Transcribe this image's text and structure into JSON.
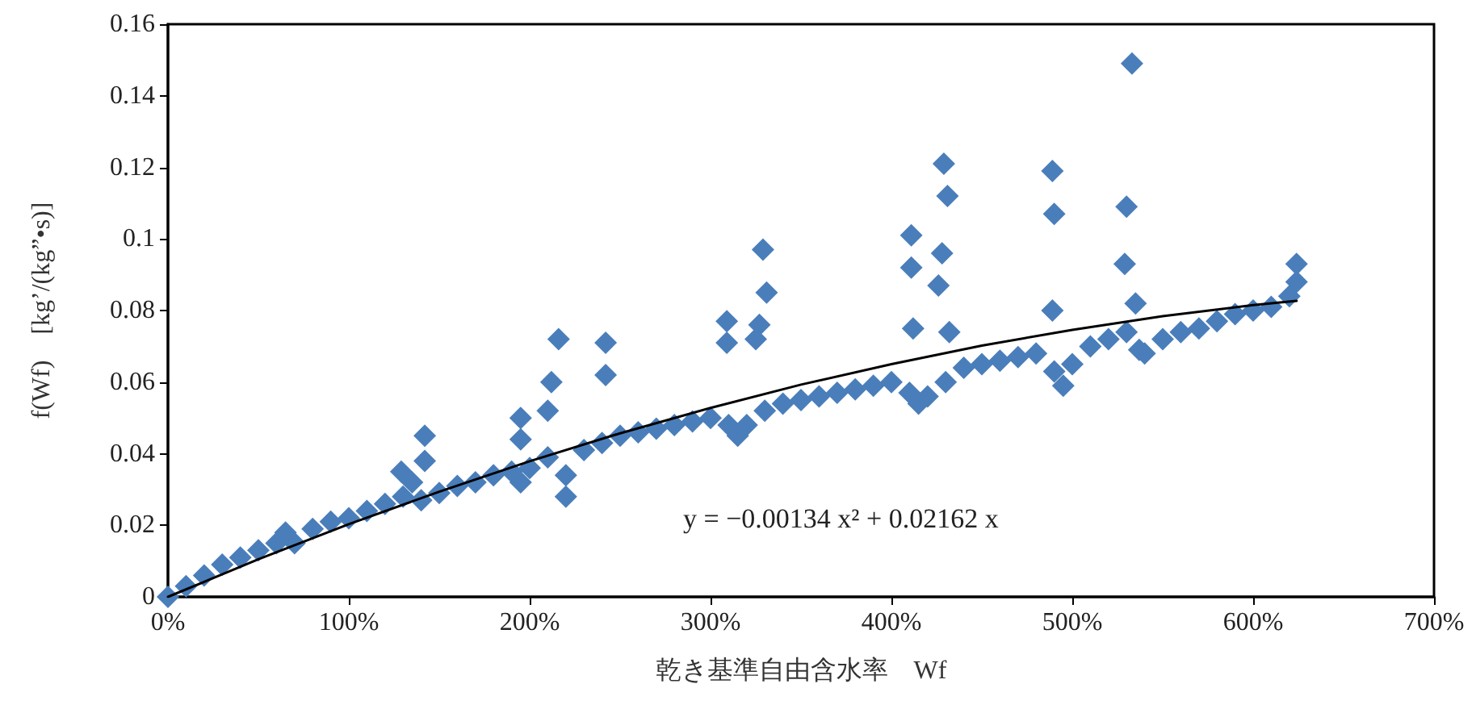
{
  "chart_data": {
    "type": "scatter",
    "xlabel": "乾き基準自由含水率　Wf",
    "ylabel": "f(Wf)　[kg’/(kg”•s)]",
    "xlim": [
      0,
      7
    ],
    "xticks": [
      {
        "value": 0,
        "label": "0%"
      },
      {
        "value": 1,
        "label": "100%"
      },
      {
        "value": 2,
        "label": "200%"
      },
      {
        "value": 3,
        "label": "300%"
      },
      {
        "value": 4,
        "label": "400%"
      },
      {
        "value": 5,
        "label": "500%"
      },
      {
        "value": 6,
        "label": "600%"
      },
      {
        "value": 7,
        "label": "700%"
      }
    ],
    "ylim": [
      0,
      0.16
    ],
    "yticks": [
      0,
      0.02,
      0.04,
      0.06,
      0.08,
      0.1,
      0.12,
      0.14,
      0.16
    ],
    "grid": false,
    "marker": "diamond",
    "annotations": [
      "y = −0.00134 x² + 0.02162 x"
    ],
    "series": [
      {
        "color": "#4a7ebb",
        "x": [
          0,
          0.1,
          0.2,
          0.3,
          0.4,
          0.5,
          0.6,
          0.65,
          0.7,
          0.8,
          0.9,
          1.0,
          1.1,
          1.2,
          1.3,
          1.35,
          1.4,
          1.5,
          1.6,
          1.7,
          1.8,
          1.9,
          1.95,
          2.0,
          2.1,
          2.2,
          2.3,
          2.4,
          2.5,
          2.6,
          2.7,
          2.8,
          2.9,
          3.0,
          3.1,
          3.15,
          3.2,
          3.3,
          3.4,
          3.5,
          3.6,
          3.7,
          3.8,
          3.9,
          4.0,
          4.1,
          4.15,
          4.2,
          4.3,
          4.4,
          4.5,
          4.6,
          4.7,
          4.8,
          4.9,
          4.95,
          5.0,
          5.1,
          5.2,
          5.3,
          5.4,
          5.5,
          5.6,
          5.7,
          5.8,
          5.9,
          6.0,
          6.1,
          6.2,
          6.24,
          2.16,
          2.12,
          2.1,
          1.95,
          1.95,
          1.42,
          1.42,
          1.29,
          2.2,
          2.42,
          2.42,
          3.09,
          3.09,
          3.29,
          3.31,
          3.27,
          3.25,
          4.11,
          4.11,
          4.12,
          4.29,
          4.31,
          4.28,
          4.26,
          4.32,
          4.89,
          4.9,
          4.89,
          5.33,
          5.3,
          5.29,
          5.35,
          5.37,
          6.24
        ],
        "values": [
          0,
          0.003,
          0.006,
          0.009,
          0.011,
          0.013,
          0.015,
          0.018,
          0.015,
          0.019,
          0.021,
          0.022,
          0.024,
          0.026,
          0.028,
          0.032,
          0.027,
          0.029,
          0.031,
          0.032,
          0.034,
          0.035,
          0.032,
          0.036,
          0.039,
          0.034,
          0.041,
          0.043,
          0.045,
          0.046,
          0.047,
          0.048,
          0.049,
          0.05,
          0.048,
          0.045,
          0.048,
          0.052,
          0.054,
          0.055,
          0.056,
          0.057,
          0.058,
          0.059,
          0.06,
          0.057,
          0.054,
          0.056,
          0.06,
          0.064,
          0.065,
          0.066,
          0.067,
          0.068,
          0.063,
          0.059,
          0.065,
          0.07,
          0.072,
          0.074,
          0.068,
          0.072,
          0.074,
          0.075,
          0.077,
          0.079,
          0.08,
          0.081,
          0.084,
          0.088,
          0.072,
          0.06,
          0.052,
          0.05,
          0.044,
          0.045,
          0.038,
          0.035,
          0.028,
          0.071,
          0.062,
          0.077,
          0.071,
          0.097,
          0.085,
          0.076,
          0.072,
          0.101,
          0.092,
          0.075,
          0.121,
          0.112,
          0.096,
          0.087,
          0.074,
          0.119,
          0.107,
          0.08,
          0.149,
          0.109,
          0.093,
          0.082,
          0.069,
          0.093
        ]
      },
      {
        "type": "line",
        "color": "#000000",
        "marker": "none",
        "line_style": "solid",
        "x": [
          0,
          0.5,
          1,
          1.5,
          2,
          2.5,
          3,
          3.5,
          4,
          4.5,
          5,
          5.5,
          6,
          6.24
        ],
        "values": [
          0,
          0.0105,
          0.0203,
          0.0294,
          0.0379,
          0.0457,
          0.0528,
          0.0593,
          0.065,
          0.0702,
          0.0746,
          0.0784,
          0.0815,
          0.0827
        ]
      }
    ]
  }
}
